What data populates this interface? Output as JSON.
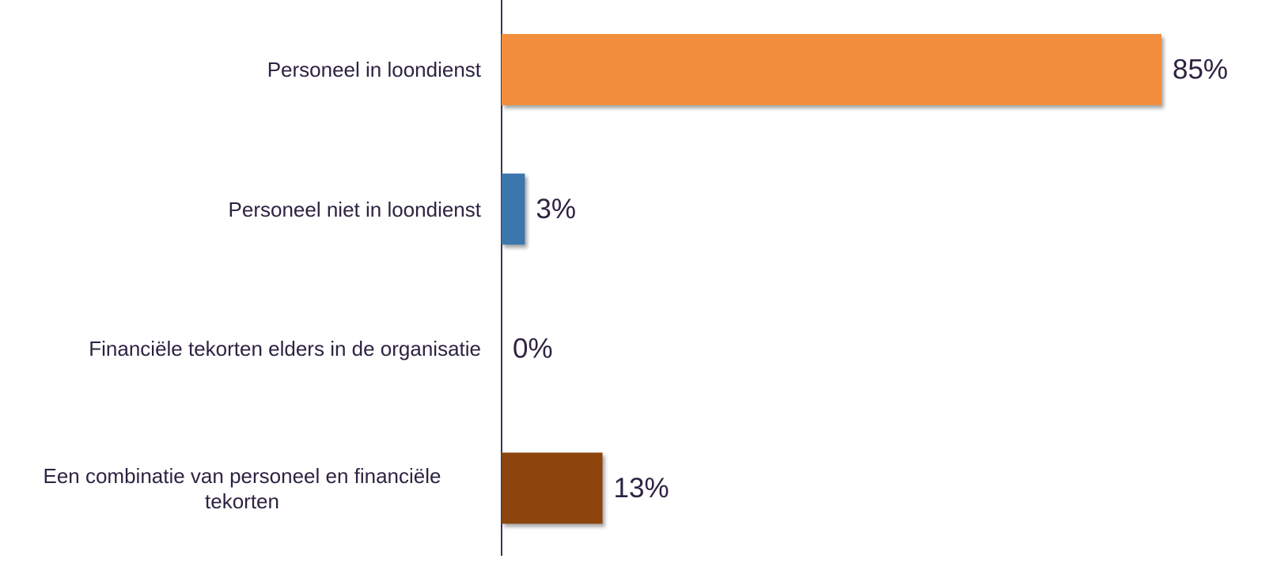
{
  "chart_data": {
    "type": "bar",
    "orientation": "horizontal",
    "categories": [
      "Personeel in loondienst",
      "Personeel niet in loondienst",
      "Financiële tekorten elders in de organisatie",
      "Een combinatie van personeel en financiële tekorten"
    ],
    "values": [
      85,
      3,
      0,
      13
    ],
    "value_labels": [
      "85%",
      "3%",
      "0%",
      "13%"
    ],
    "colors": [
      "#f28e3c",
      "#3a76ad",
      null,
      "#8b4409"
    ]
  }
}
